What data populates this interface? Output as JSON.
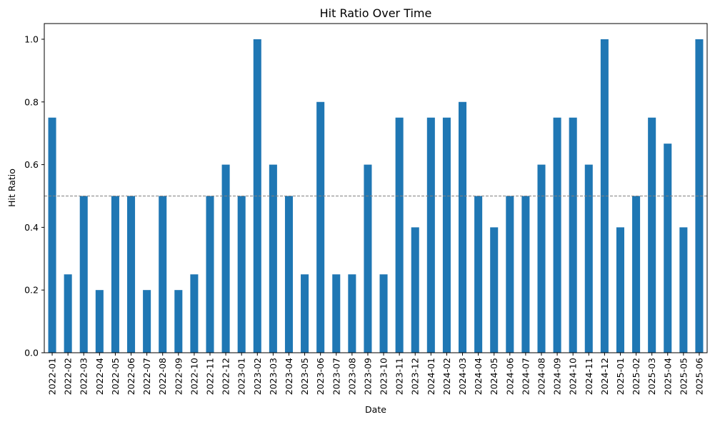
{
  "chart_data": {
    "type": "bar",
    "title": "Hit Ratio Over Time",
    "xlabel": "Date",
    "ylabel": "Hit Ratio",
    "ylim": [
      0,
      1.05
    ],
    "yticks": [
      "0.0",
      "0.2",
      "0.4",
      "0.6",
      "0.8",
      "1.0"
    ],
    "grid": false,
    "bar_color": "#1f77b4",
    "reference_line": {
      "y": 0.5,
      "style": "dashed",
      "color": "#808080"
    },
    "categories": [
      "2022-01",
      "2022-02",
      "2022-03",
      "2022-04",
      "2022-05",
      "2022-06",
      "2022-07",
      "2022-08",
      "2022-09",
      "2022-10",
      "2022-11",
      "2022-12",
      "2023-01",
      "2023-02",
      "2023-03",
      "2023-04",
      "2023-05",
      "2023-06",
      "2023-07",
      "2023-08",
      "2023-09",
      "2023-10",
      "2023-11",
      "2023-12",
      "2024-01",
      "2024-02",
      "2024-03",
      "2024-04",
      "2024-05",
      "2024-06",
      "2024-07",
      "2024-08",
      "2024-09",
      "2024-10",
      "2024-11",
      "2024-12",
      "2025-01",
      "2025-02",
      "2025-03",
      "2025-04",
      "2025-05",
      "2025-06"
    ],
    "values": [
      0.75,
      0.25,
      0.5,
      0.2,
      0.5,
      0.5,
      0.2,
      0.5,
      0.2,
      0.25,
      0.5,
      0.6,
      0.5,
      1.0,
      0.6,
      0.5,
      0.25,
      0.8,
      0.25,
      0.25,
      0.6,
      0.25,
      0.75,
      0.4,
      0.75,
      0.75,
      0.8,
      0.5,
      0.4,
      0.5,
      0.5,
      0.6,
      0.75,
      0.75,
      0.6,
      1.0,
      0.4,
      0.5,
      0.75,
      0.667,
      0.4,
      1.0
    ]
  }
}
